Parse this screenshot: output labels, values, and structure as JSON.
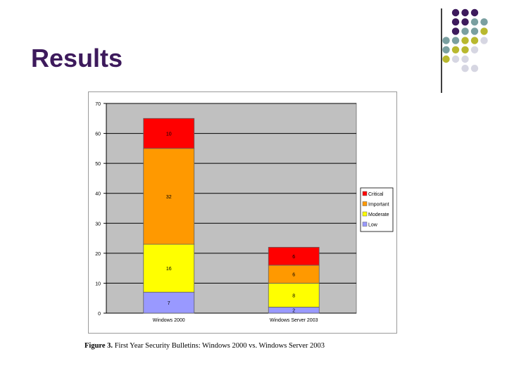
{
  "slide": {
    "title": "Results",
    "caption_label": "Figure 3.",
    "caption_text": " First Year Security Bulletins: Windows 2000 vs. Windows Server 2003"
  },
  "decor": {
    "dot_colors": [
      "#3d1a5c",
      "#7a9fa0",
      "#b8b82e",
      "#d6d6e2"
    ]
  },
  "chart_data": {
    "type": "bar",
    "stacked": true,
    "categories": [
      "Windows 2000",
      "Windows Server 2003"
    ],
    "series": [
      {
        "name": "Low",
        "values": [
          7,
          2
        ],
        "color": "#9999ff"
      },
      {
        "name": "Moderate",
        "values": [
          16,
          8
        ],
        "color": "#ffff00"
      },
      {
        "name": "Important",
        "values": [
          32,
          6
        ],
        "color": "#ff9900"
      },
      {
        "name": "Critical",
        "values": [
          10,
          6
        ],
        "color": "#ff0000"
      }
    ],
    "ylim": [
      0,
      70
    ],
    "yticks": [
      "0",
      "10",
      "20",
      "30",
      "40",
      "50",
      "60",
      "70"
    ],
    "grid": true,
    "plot_background": "#c0c0c0",
    "legend_position": "right",
    "legend_order": [
      "Critical",
      "Important",
      "Moderate",
      "Low"
    ],
    "title": "",
    "xlabel": "",
    "ylabel": ""
  }
}
